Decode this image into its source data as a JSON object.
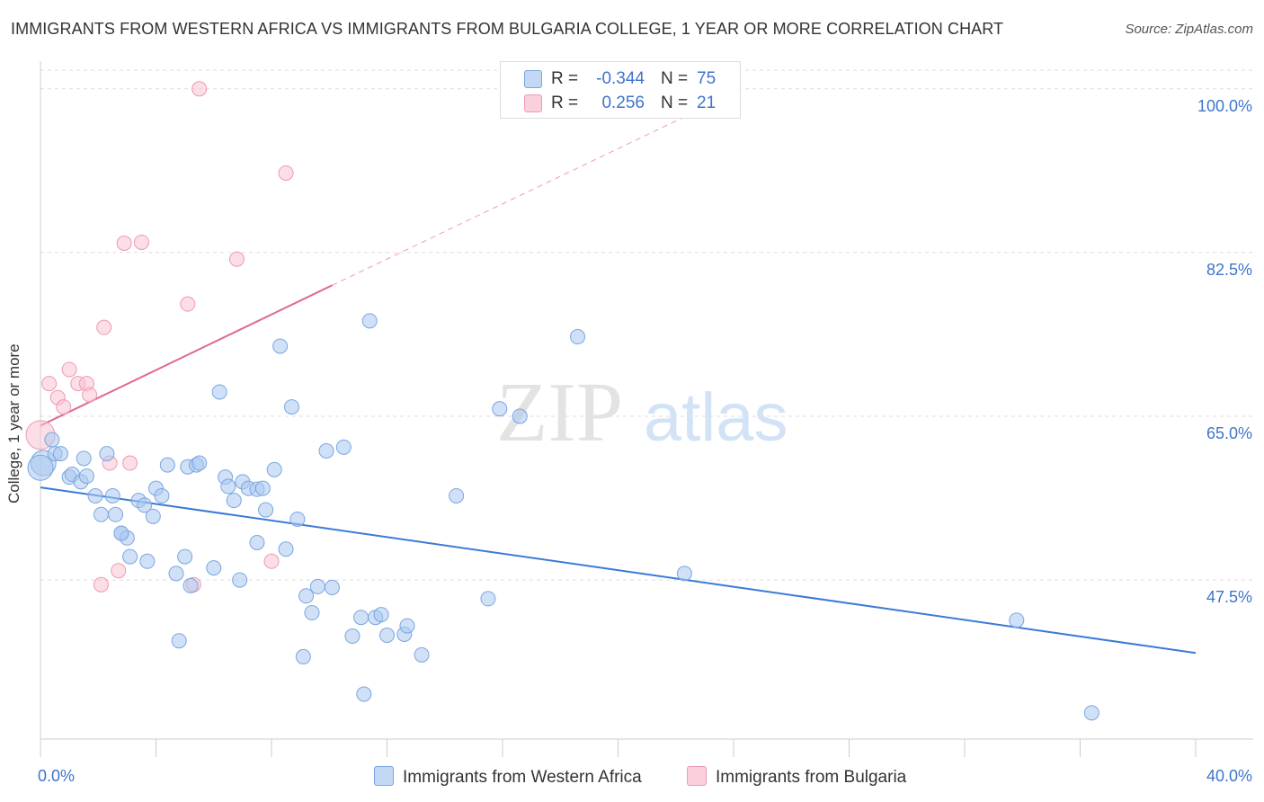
{
  "title": "IMMIGRANTS FROM WESTERN AFRICA VS IMMIGRANTS FROM BULGARIA COLLEGE, 1 YEAR OR MORE CORRELATION CHART",
  "source": "Source: ZipAtlas.com",
  "watermark": {
    "zip": "ZIP",
    "atlas": "atlas"
  },
  "legend_top": [
    {
      "r_label": "R =",
      "r_value": "-0.344",
      "n_label": "N =",
      "n_value": "75"
    },
    {
      "r_label": "R =",
      "r_value": "0.256",
      "n_label": "N =",
      "n_value": "21"
    }
  ],
  "colors": {
    "blue_fill": "#aac8f0",
    "blue_stroke": "#7aa6e0",
    "blue_line": "#3a7bd5",
    "pink_fill": "#f7c3d2",
    "pink_stroke": "#ee9ab3",
    "pink_line": "#e06a90",
    "tick_label": "#3f74cc",
    "grid": "#dddddd"
  },
  "chart_data": {
    "type": "scatter",
    "title": "IMMIGRANTS FROM WESTERN AFRICA VS IMMIGRANTS FROM BULGARIA COLLEGE, 1 YEAR OR MORE CORRELATION CHART",
    "xlabel": "",
    "ylabel": "College, 1 year or more",
    "xlim": [
      0,
      40
    ],
    "ylim": [
      30.5,
      102
    ],
    "x_tick_labels": [
      "0.0%",
      "40.0%"
    ],
    "y_ticks": [
      47.5,
      65.0,
      82.5,
      100.0
    ],
    "y_tick_labels": [
      "47.5%",
      "65.0%",
      "82.5%",
      "100.0%"
    ],
    "grid": true,
    "legend_position": "bottom",
    "series": [
      {
        "name": "Immigrants from Western Africa",
        "r": -0.344,
        "n": 75,
        "trend": {
          "x": [
            0,
            40
          ],
          "y": [
            57.4,
            39.7
          ]
        },
        "points": [
          [
            0.1,
            60.0
          ],
          [
            0.4,
            62.5
          ],
          [
            0.5,
            61.0
          ],
          [
            0.7,
            61.0
          ],
          [
            1.0,
            58.5
          ],
          [
            1.1,
            58.8
          ],
          [
            1.4,
            58.0
          ],
          [
            1.5,
            60.5
          ],
          [
            1.6,
            58.6
          ],
          [
            1.9,
            56.5
          ],
          [
            2.1,
            54.5
          ],
          [
            2.3,
            61.0
          ],
          [
            2.5,
            56.5
          ],
          [
            2.6,
            54.5
          ],
          [
            2.8,
            52.5
          ],
          [
            3.0,
            52.0
          ],
          [
            3.1,
            50.0
          ],
          [
            3.4,
            56.0
          ],
          [
            3.6,
            55.5
          ],
          [
            3.7,
            49.5
          ],
          [
            3.9,
            54.3
          ],
          [
            4.0,
            57.3
          ],
          [
            4.2,
            56.5
          ],
          [
            4.4,
            59.8
          ],
          [
            4.7,
            48.2
          ],
          [
            4.8,
            41.0
          ],
          [
            5.0,
            50.0
          ],
          [
            5.1,
            59.6
          ],
          [
            5.2,
            46.9
          ],
          [
            5.4,
            59.8
          ],
          [
            5.5,
            60.0
          ],
          [
            6.0,
            48.8
          ],
          [
            6.2,
            67.6
          ],
          [
            6.4,
            58.5
          ],
          [
            6.5,
            57.5
          ],
          [
            6.7,
            56.0
          ],
          [
            6.9,
            47.5
          ],
          [
            7.0,
            58.0
          ],
          [
            7.2,
            57.3
          ],
          [
            7.5,
            57.2
          ],
          [
            7.7,
            57.3
          ],
          [
            7.8,
            55.0
          ],
          [
            7.5,
            51.5
          ],
          [
            8.1,
            59.3
          ],
          [
            8.3,
            72.5
          ],
          [
            8.5,
            50.8
          ],
          [
            8.7,
            66.0
          ],
          [
            8.9,
            54.0
          ],
          [
            9.1,
            39.3
          ],
          [
            9.2,
            45.8
          ],
          [
            9.4,
            44.0
          ],
          [
            9.6,
            46.8
          ],
          [
            9.9,
            61.3
          ],
          [
            10.1,
            46.7
          ],
          [
            10.5,
            61.7
          ],
          [
            10.8,
            41.5
          ],
          [
            11.1,
            43.5
          ],
          [
            11.2,
            35.3
          ],
          [
            11.4,
            75.2
          ],
          [
            11.6,
            43.5
          ],
          [
            11.8,
            43.8
          ],
          [
            12.0,
            41.6
          ],
          [
            12.6,
            41.7
          ],
          [
            12.7,
            42.6
          ],
          [
            13.2,
            39.5
          ],
          [
            14.4,
            56.5
          ],
          [
            15.5,
            45.5
          ],
          [
            15.9,
            65.8
          ],
          [
            16.6,
            65.0
          ],
          [
            18.6,
            73.5
          ],
          [
            22.3,
            48.2
          ],
          [
            33.8,
            43.2
          ],
          [
            36.4,
            33.3
          ],
          [
            0.0,
            59.5
          ],
          [
            2.8,
            52.5
          ]
        ]
      },
      {
        "name": "Immigrants from Bulgaria",
        "r": 0.256,
        "n": 21,
        "trend": {
          "x": [
            0,
            10.1
          ],
          "y": [
            64.0,
            79.0
          ]
        },
        "trend_extension": {
          "x": [
            10.1,
            22.3
          ],
          "y": [
            79.0,
            97.0
          ]
        },
        "points": [
          [
            0.0,
            63.0
          ],
          [
            0.3,
            68.5
          ],
          [
            0.6,
            67.0
          ],
          [
            0.8,
            66.0
          ],
          [
            1.0,
            70.0
          ],
          [
            1.3,
            68.5
          ],
          [
            1.6,
            68.5
          ],
          [
            1.7,
            67.3
          ],
          [
            2.1,
            47.0
          ],
          [
            2.2,
            74.5
          ],
          [
            2.4,
            60.0
          ],
          [
            2.7,
            48.5
          ],
          [
            2.9,
            83.5
          ],
          [
            3.1,
            60.0
          ],
          [
            3.5,
            83.6
          ],
          [
            5.1,
            77.0
          ],
          [
            5.3,
            47.0
          ],
          [
            5.5,
            100.0
          ],
          [
            6.8,
            81.8
          ],
          [
            8.0,
            49.5
          ],
          [
            8.5,
            91.0
          ]
        ]
      }
    ]
  }
}
